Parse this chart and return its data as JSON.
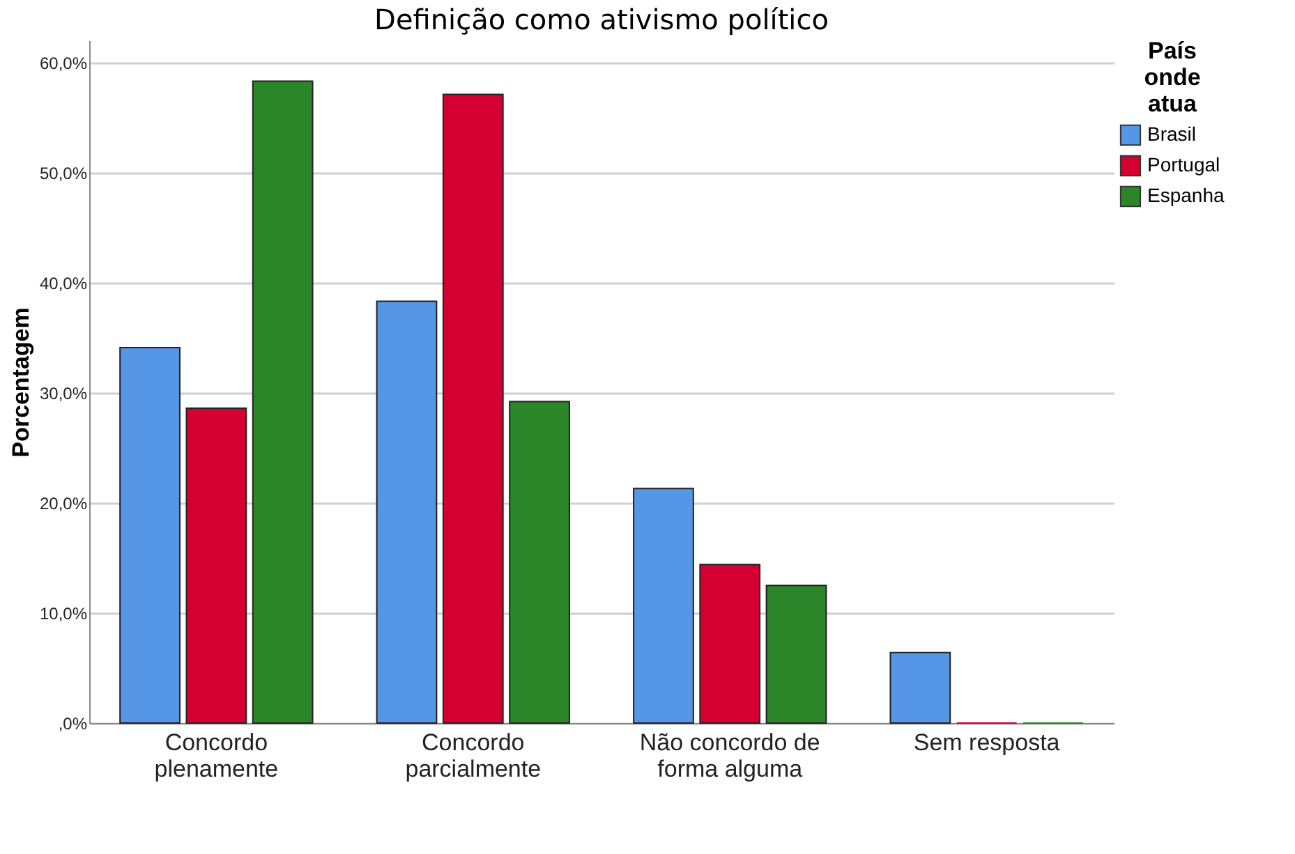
{
  "chart_data": {
    "type": "bar",
    "title": "Definição como ativismo político",
    "ylabel": "Porcentagem",
    "legend_title": "País onde atua",
    "categories": [
      "Concordo plenamente",
      "Concordo parcialmente",
      "Não concordo de forma alguma",
      "Sem resposta"
    ],
    "series": [
      {
        "name": "Brasil",
        "color": "#5596e6",
        "values": [
          34.1,
          38.3,
          21.3,
          6.4
        ]
      },
      {
        "name": "Portugal",
        "color": "#d50032",
        "values": [
          28.6,
          57.1,
          14.4,
          0
        ]
      },
      {
        "name": "Espanha",
        "color": "#2a8629",
        "values": [
          58.3,
          29.2,
          12.5,
          0
        ]
      }
    ],
    "ylim": [
      0,
      62
    ],
    "yticks": [
      {
        "value": 0,
        "label": ",0%"
      },
      {
        "value": 10,
        "label": "10,0%"
      },
      {
        "value": 20,
        "label": "20,0%"
      },
      {
        "value": 30,
        "label": "30,0%"
      },
      {
        "value": 40,
        "label": "40,0%"
      },
      {
        "value": 50,
        "label": "50,0%"
      },
      {
        "value": 60,
        "label": "60,0%"
      }
    ],
    "grid": "y",
    "legend": "top right"
  }
}
